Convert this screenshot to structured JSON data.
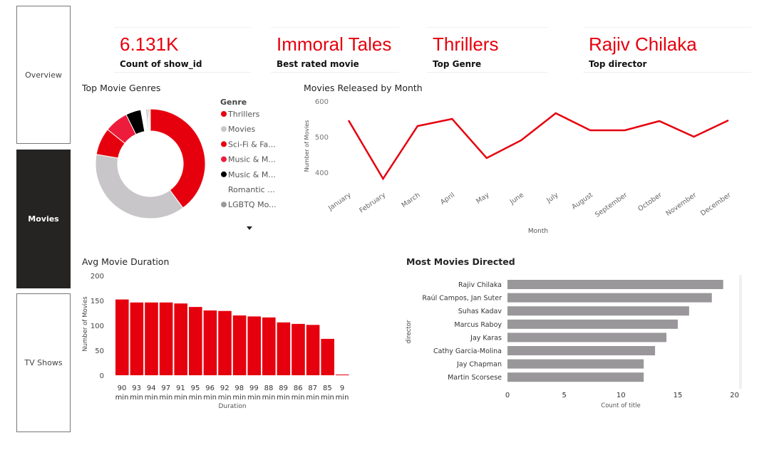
{
  "nav": [
    {
      "label": "Overview",
      "active": false
    },
    {
      "label": "Movies",
      "active": true
    },
    {
      "label": "TV Shows",
      "active": false
    }
  ],
  "cards": [
    {
      "value": "6.131K",
      "label": "Count of show_id"
    },
    {
      "value": "Immoral Tales",
      "label": "Best rated movie"
    },
    {
      "value": "Thrillers",
      "label": "Top Genre"
    },
    {
      "value": "Rajiv Chilaka",
      "label": "Top director"
    }
  ],
  "colors": {
    "accent": "#e6000e",
    "gray": "#999799",
    "dark": "#252423"
  },
  "chart_data": [
    {
      "type": "pie",
      "title": "Top Movie Genres",
      "legend_title": "Genre",
      "legend_more_icon": "caret-down-icon",
      "slices": [
        {
          "name": "Thrillers",
          "value": 40,
          "color": "#e6000e"
        },
        {
          "name": "Movies",
          "value": 38,
          "color": "#c8c6c8"
        },
        {
          "name": "Sci-Fi & Fa...",
          "value": 8,
          "color": "#e6000e"
        },
        {
          "name": "Music & M...",
          "value": 7,
          "color": "#ee1c3c"
        },
        {
          "name": "Music & M...",
          "value": 4.5,
          "color": "#000000"
        },
        {
          "name": "Romantic ...",
          "value": 1.5,
          "color": "#ffffff"
        },
        {
          "name": "LGBTQ Mo...",
          "value": 0.4,
          "color": "#999999"
        },
        {
          "name": "",
          "value": 0.3,
          "color": "#a040c0"
        },
        {
          "name": "",
          "value": 0.3,
          "color": "#e040a0"
        },
        {
          "name": "",
          "value": 0.3,
          "color": "#e0b000"
        }
      ]
    },
    {
      "type": "line",
      "title": "Movies Released by Month",
      "xlabel": "Month",
      "ylabel": "Number of Movies",
      "ylim": [
        350,
        600
      ],
      "yticks": [
        400,
        500,
        600
      ],
      "categories": [
        "January",
        "February",
        "March",
        "April",
        "May",
        "June",
        "July",
        "August",
        "September",
        "October",
        "November",
        "December"
      ],
      "values": [
        546,
        382,
        530,
        550,
        440,
        490,
        566,
        518,
        518,
        544,
        500,
        546
      ]
    },
    {
      "type": "bar",
      "title": "Avg Movie Duration",
      "xlabel": "Duration",
      "ylabel": "Number of Movies",
      "ylim": [
        0,
        200
      ],
      "yticks": [
        0,
        50,
        100,
        150,
        200
      ],
      "categories": [
        "90 min",
        "93 min",
        "94 min",
        "97 min",
        "91 min",
        "95 min",
        "96 min",
        "92 min",
        "98 min",
        "99 min",
        "88 min",
        "89 min",
        "86 min",
        "87 min",
        "85 min",
        "9 min"
      ],
      "values": [
        152,
        146,
        146,
        146,
        144,
        137,
        130,
        129,
        120,
        118,
        116,
        106,
        103,
        101,
        73,
        1
      ]
    },
    {
      "type": "bar",
      "orientation": "horizontal",
      "title": "Most Movies Directed",
      "xlabel": "Count of title",
      "ylabel": "director",
      "xlim": [
        0,
        20
      ],
      "xticks": [
        0,
        5,
        10,
        15,
        20
      ],
      "categories": [
        "Rajiv Chilaka",
        "Raúl Campos, Jan Suter",
        "Suhas Kadav",
        "Marcus Raboy",
        "Jay Karas",
        "Cathy Garcia-Molina",
        "Jay Chapman",
        "Martin Scorsese"
      ],
      "values": [
        19,
        18,
        16,
        15,
        14,
        13,
        12,
        12
      ]
    }
  ]
}
